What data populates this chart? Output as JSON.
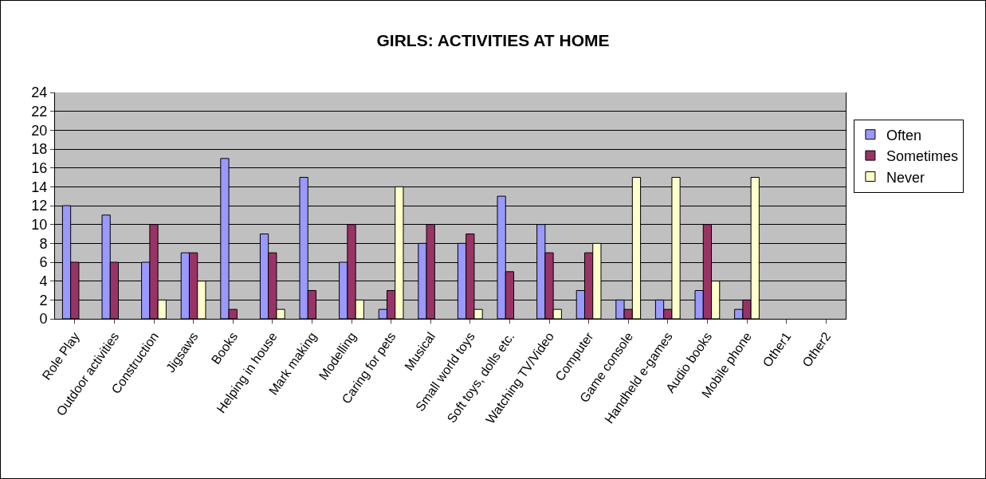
{
  "chart_data": {
    "type": "bar",
    "title": "GIRLS: ACTIVITIES AT HOME",
    "categories": [
      "Role Play",
      "Outdoor activities",
      "Construction",
      "Jigsaws",
      "Books",
      "Helping in house",
      "Mark making",
      "Modelling",
      "Caring for pets",
      "Musical",
      "Small world toys",
      "Soft toys, dolls etc.",
      "Watching TV/Video",
      "Computer",
      "Game console",
      "Handheld e-games",
      "Audio books",
      "Mobile phone",
      "Other1",
      "Other2"
    ],
    "series": [
      {
        "name": "Often",
        "color": "#9999ff",
        "values": [
          12,
          11,
          6,
          7,
          17,
          9,
          15,
          6,
          1,
          8,
          8,
          13,
          10,
          3,
          2,
          2,
          3,
          1,
          null,
          null
        ]
      },
      {
        "name": "Sometimes",
        "color": "#993366",
        "values": [
          6,
          6,
          10,
          7,
          1,
          7,
          3,
          10,
          3,
          10,
          9,
          5,
          7,
          7,
          1,
          1,
          10,
          2,
          null,
          null
        ]
      },
      {
        "name": "Never",
        "color": "#ffffcc",
        "values": [
          null,
          null,
          2,
          4,
          null,
          1,
          null,
          2,
          14,
          null,
          1,
          null,
          1,
          8,
          15,
          15,
          4,
          15,
          null,
          null
        ]
      }
    ],
    "ylim": [
      0,
      24
    ],
    "yticks": [
      0,
      2,
      4,
      6,
      8,
      10,
      12,
      14,
      16,
      18,
      20,
      22,
      24
    ],
    "grid": "y",
    "legend": "right"
  }
}
